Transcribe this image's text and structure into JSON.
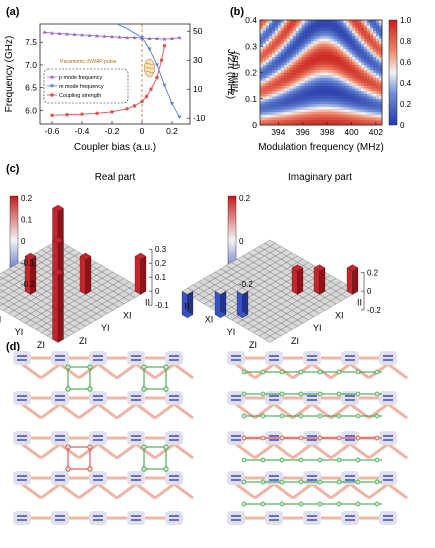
{
  "panels": {
    "a": {
      "label": "(a)",
      "y_left_label": "Frequency (GHz)",
      "y_right_label": "J/2π (MHz)",
      "x_label": "Coupler bias (a.u.)",
      "pulse_label": "Parametric iSWAP pulse",
      "x_ticks": [
        "-0.6",
        "-0.4",
        "-0.2",
        "0",
        "0.2"
      ],
      "y_left_ticks": [
        "6.0",
        "6.5",
        "7.0",
        "7.5"
      ],
      "y_right_ticks": [
        "-10",
        "10",
        "30",
        "50"
      ],
      "legend": [
        "p mode frequency",
        "m mode frequency",
        "Coupling strength"
      ]
    },
    "b": {
      "label": "(b)",
      "y_label": "Time (μs)",
      "x_label": "Modulation frequency (MHz)",
      "x_ticks": [
        "394",
        "396",
        "398",
        "400",
        "402"
      ],
      "y_ticks": [
        "0",
        "0.1",
        "0.2",
        "0.3",
        "0.4"
      ],
      "colorbar_ticks": [
        "0",
        "0.2",
        "0.4",
        "0.6",
        "0.8",
        "1.0"
      ]
    },
    "c": {
      "label": "(c)",
      "real_title": "Real part",
      "imag_title": "Imaginary part",
      "axis_labels": [
        "II",
        "XI",
        "YI",
        "ZI"
      ],
      "real_ticks": [
        "-0.1",
        "0",
        "0.1",
        "0.2",
        "0.3"
      ],
      "imag_ticks": [
        "-0.2",
        "0",
        "0.2"
      ],
      "cbar_real_ticks": [
        "0.2",
        "0.1",
        "0",
        "-0.1",
        "-0.2"
      ],
      "cbar_imag_ticks": [
        "0.2",
        "0",
        "-0.2"
      ]
    },
    "d": {
      "label": "(d)"
    }
  },
  "colors": {
    "p_mode": "#9b6fc9",
    "m_mode": "#4f7fd6",
    "coupling": "#e05050",
    "green_path": "#2e9e3e",
    "red_path": "#e03a3a",
    "qubit": "#6a6ec8",
    "coupler": "#f0b4a4"
  },
  "chart_data": [
    {
      "type": "line",
      "title": "",
      "xlabel": "Coupler bias (a.u.)",
      "ylabel": "Frequency (GHz)",
      "xlim": [
        -0.68,
        0.32
      ],
      "ylim": [
        5.7,
        7.9
      ],
      "y2label": "J/2π (MHz)",
      "y2lim": [
        -14,
        55
      ],
      "series": [
        {
          "name": "p mode frequency",
          "x": [
            -0.65,
            -0.6,
            -0.55,
            -0.5,
            -0.45,
            -0.4,
            -0.35,
            -0.3,
            -0.25,
            -0.2,
            -0.15,
            -0.1,
            -0.05,
            0,
            0.05,
            0.1,
            0.15,
            0.2,
            0.25
          ],
          "y": [
            7.72,
            7.7,
            7.69,
            7.68,
            7.67,
            7.66,
            7.65,
            7.64,
            7.63,
            7.62,
            7.61,
            7.6,
            7.6,
            7.59,
            7.58,
            7.58,
            7.57,
            7.58,
            7.6
          ]
        },
        {
          "name": "m mode frequency",
          "x": [
            -0.65,
            -0.5,
            -0.35,
            -0.2,
            -0.1,
            0,
            0.05,
            0.1,
            0.15,
            0.2,
            0.25
          ],
          "y": [
            8.55,
            8.35,
            8.15,
            7.95,
            7.8,
            7.6,
            7.35,
            7.0,
            6.55,
            6.15,
            5.85
          ]
        },
        {
          "name": "Coupling strength",
          "x": [
            -0.6,
            -0.5,
            -0.4,
            -0.3,
            -0.2,
            -0.1,
            -0.05,
            0,
            0.03,
            0.06,
            0.1,
            0.13,
            0.15
          ],
          "y": [
            -8,
            -7.6,
            -7.2,
            -6.6,
            -5.6,
            -3.5,
            -1.5,
            1.5,
            5,
            10,
            18,
            30,
            40
          ]
        }
      ]
    },
    {
      "type": "heatmap",
      "title": "",
      "xlabel": "Modulation frequency (MHz)",
      "ylabel": "Time (μs)",
      "xlim": [
        392.5,
        402.5
      ],
      "ylim": [
        0,
        0.4
      ],
      "zlim": [
        0,
        1
      ],
      "description_values": {
        "bands_center_MHz": 397.8,
        "period_us": 0.26
      }
    },
    {
      "type": "bar",
      "title": "Real part",
      "categories": [
        "II",
        "XI",
        "YI",
        "ZI"
      ],
      "bars": [
        {
          "row": 0,
          "col": 0,
          "value": 0.25
        },
        {
          "row": 0,
          "col": 15,
          "value": 0.25
        },
        {
          "row": 15,
          "col": 0,
          "value": 0.25
        },
        {
          "row": 15,
          "col": 15,
          "value": 0.25
        },
        {
          "row": 5,
          "col": 5,
          "value": 0.25
        },
        {
          "row": 5,
          "col": 10,
          "value": 0.25
        },
        {
          "row": 10,
          "col": 5,
          "value": 0.25
        },
        {
          "row": 10,
          "col": 10,
          "value": 0.25
        }
      ],
      "zlim": [
        -0.1,
        0.3
      ]
    },
    {
      "type": "bar",
      "title": "Imaginary part",
      "categories": [
        "II",
        "XI",
        "YI",
        "ZI"
      ],
      "bars": [
        {
          "row": 0,
          "col": 15,
          "value": 0.25
        },
        {
          "row": 15,
          "col": 0,
          "value": -0.25
        },
        {
          "row": 5,
          "col": 10,
          "value": 0.25
        },
        {
          "row": 10,
          "col": 5,
          "value": -0.25
        },
        {
          "row": 3,
          "col": 12,
          "value": 0.25
        },
        {
          "row": 12,
          "col": 3,
          "value": -0.25
        }
      ],
      "zlim": [
        -0.3,
        0.3
      ]
    }
  ]
}
